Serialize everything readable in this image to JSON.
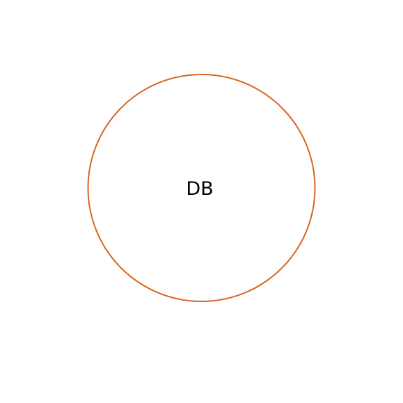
{
  "diagram": {
    "node": {
      "label": "DB",
      "stroke_color": "#d9661f",
      "fill_color": "#ffffff",
      "text_color": "#000000"
    }
  }
}
